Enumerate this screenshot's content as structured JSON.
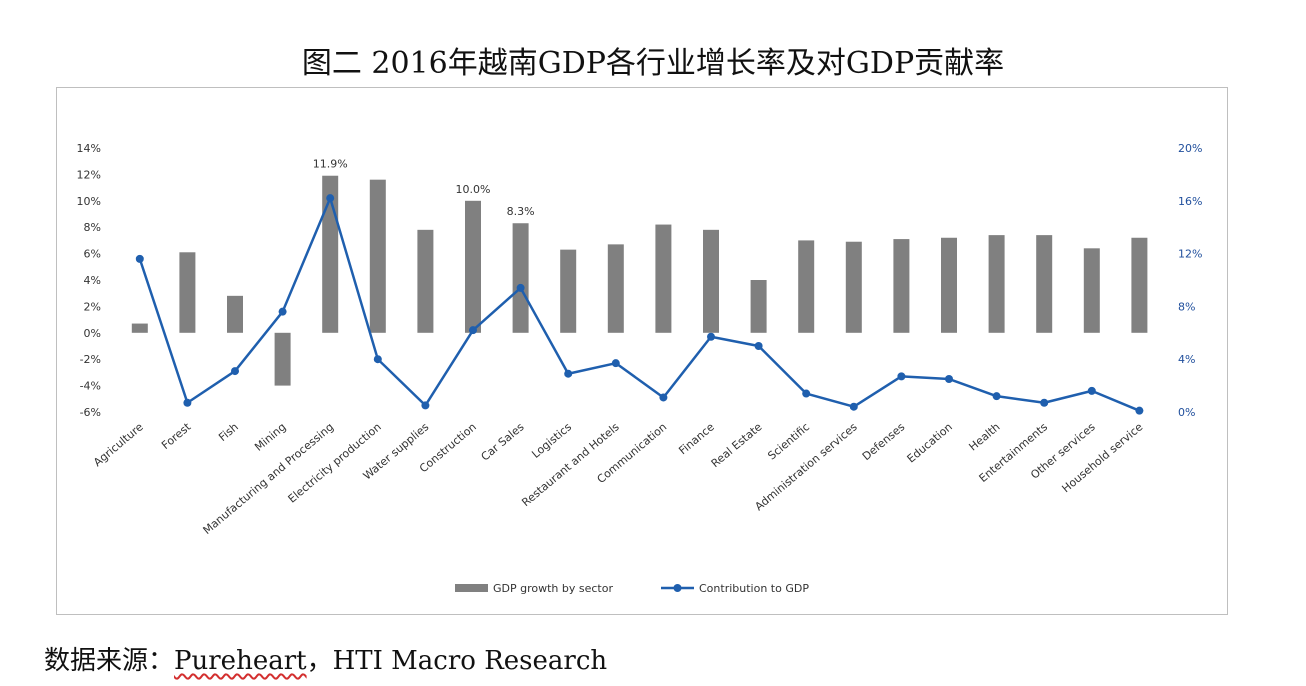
{
  "title": "图二 2016年越南GDP各行业增长率及对GDP贡献率",
  "source": {
    "prefix": "数据来源：",
    "org": "Pureheart",
    "sep": "，",
    "rest": "HTI Macro Research"
  },
  "colors": {
    "bar": "#808080",
    "line": "#1f5fae",
    "right_axis": "#1f4e9c"
  },
  "chart_data": {
    "type": "bar",
    "categories": [
      "Agriculture",
      "Forest",
      "Fish",
      "Mining",
      "Manufacturing and Processing",
      "Electricity production",
      "Water supplies",
      "Construction",
      "Car Sales",
      "Logistics",
      "Restaurant and Hotels",
      "Communication",
      "Finance",
      "Real Estate",
      "Scientific",
      "Administration services",
      "Defenses",
      "Education",
      "Health",
      "Entertainments",
      "Other services",
      "Household service"
    ],
    "series": [
      {
        "name": "GDP growth by sector",
        "type": "bar",
        "axis": "left",
        "values": [
          0.7,
          6.1,
          2.8,
          -4.0,
          11.9,
          11.6,
          7.8,
          10.0,
          8.3,
          6.3,
          6.7,
          8.2,
          7.8,
          4.0,
          7.0,
          6.9,
          7.1,
          7.2,
          7.4,
          7.4,
          6.4,
          7.2
        ]
      },
      {
        "name": "Contribution to GDP",
        "type": "line",
        "axis": "right",
        "values": [
          11.6,
          0.7,
          3.1,
          7.6,
          16.2,
          4.0,
          0.5,
          6.2,
          9.4,
          2.9,
          3.7,
          1.1,
          5.7,
          5.0,
          1.4,
          0.4,
          2.7,
          2.5,
          1.2,
          0.7,
          1.6,
          0.1
        ]
      }
    ],
    "data_labels": [
      {
        "index": 4,
        "text": "11.9%"
      },
      {
        "index": 7,
        "text": "10.0%"
      },
      {
        "index": 8,
        "text": "8.3%"
      }
    ],
    "y_left": {
      "ylim": [
        -6,
        14
      ],
      "ticks": [
        "14%",
        "12%",
        "10%",
        "8%",
        "6%",
        "4%",
        "2%",
        "0%",
        "-2%",
        "-4%",
        "-6%"
      ]
    },
    "y_right": {
      "ylim": [
        0,
        20
      ],
      "ticks": [
        "20%",
        "16%",
        "12%",
        "8%",
        "4%",
        "0%"
      ]
    },
    "legend_position": "bottom",
    "grid": false
  }
}
